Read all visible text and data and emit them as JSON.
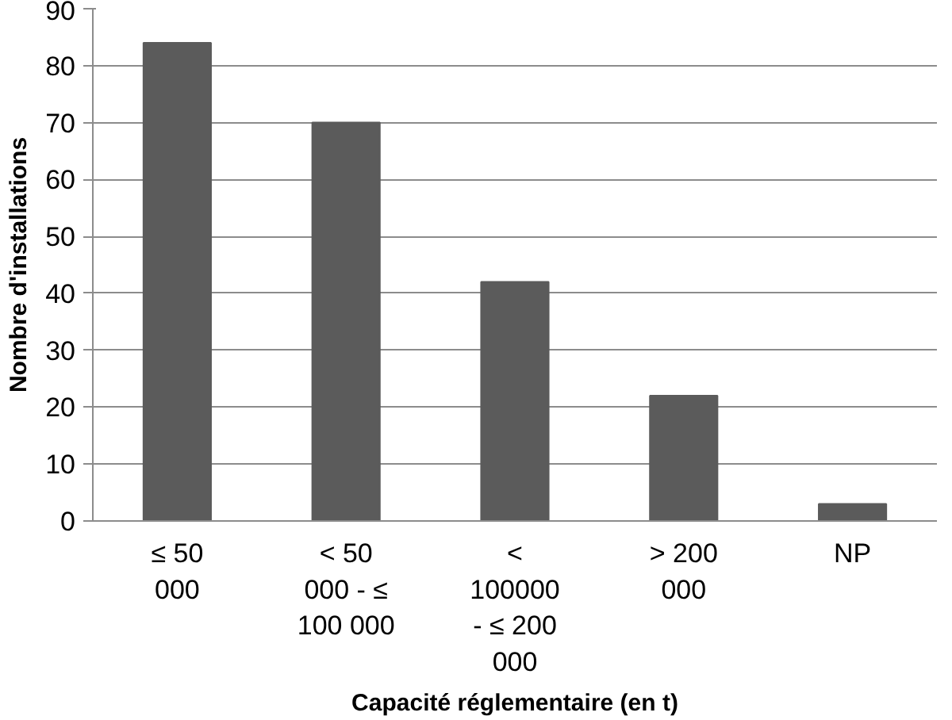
{
  "chart_data": {
    "type": "bar",
    "xlabel": "Capacité réglementaire (en t)",
    "ylabel": "Nombre d'installations",
    "categories": [
      "≤ 50 000",
      "< 50 000 - ≤ 100 000",
      "< 100000 - ≤ 200 000",
      "> 200 000",
      "NP"
    ],
    "values": [
      84,
      70,
      42,
      22,
      3
    ],
    "color": "#5b5b5b",
    "ylim": [
      0,
      90
    ],
    "yticks": [
      0,
      10,
      20,
      30,
      40,
      50,
      60,
      70,
      80,
      90
    ],
    "grid": "y"
  }
}
